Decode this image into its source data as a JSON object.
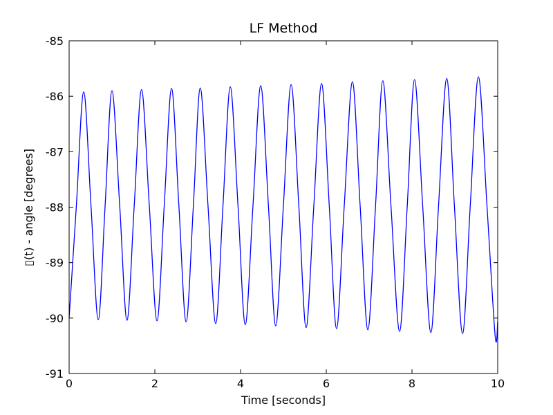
{
  "chart_data": {
    "type": "line",
    "title": "LF Method",
    "xlabel": "Time [seconds]",
    "ylabel": "▯(t) - angle [degrees]",
    "xlim": [
      0,
      10
    ],
    "xticks": [
      0,
      2,
      4,
      6,
      8,
      10
    ],
    "ylim": [
      -91,
      -85
    ],
    "yticks": [
      -91,
      -90,
      -89,
      -88,
      -87,
      -86,
      -85
    ],
    "grid": false,
    "series": [
      {
        "name": "LF Method",
        "color": "#0000ff",
        "x": [
          0,
          0.17,
          0.34,
          0.51,
          0.68,
          0.84,
          1.0,
          1.18,
          1.35,
          1.52,
          1.69,
          1.87,
          2.05,
          2.22,
          2.39,
          2.56,
          2.73,
          2.9,
          3.06,
          3.24,
          3.42,
          3.59,
          3.76,
          3.94,
          4.11,
          4.29,
          4.47,
          4.65,
          4.82,
          5.0,
          5.18,
          5.36,
          5.53,
          5.71,
          5.89,
          6.07,
          6.24,
          6.42,
          6.61,
          6.79,
          6.97,
          7.15,
          7.32,
          7.51,
          7.71,
          7.89,
          8.06,
          8.25,
          8.44,
          8.62,
          8.81,
          8.99,
          9.18,
          9.36,
          9.55,
          9.75,
          9.94,
          10.0
        ],
        "values": [
          -90.0,
          -87.96,
          -85.92,
          -87.97,
          -90.03,
          -87.97,
          -85.9,
          -87.97,
          -90.04,
          -87.96,
          -85.88,
          -87.96,
          -90.05,
          -87.96,
          -85.86,
          -87.96,
          -90.07,
          -87.96,
          -85.85,
          -87.97,
          -90.1,
          -87.97,
          -85.83,
          -87.97,
          -90.12,
          -87.97,
          -85.81,
          -87.97,
          -90.14,
          -87.97,
          -85.79,
          -87.98,
          -90.17,
          -87.97,
          -85.77,
          -87.98,
          -90.19,
          -87.97,
          -85.74,
          -87.97,
          -90.21,
          -87.97,
          -85.72,
          -87.98,
          -90.24,
          -87.97,
          -85.7,
          -87.98,
          -90.26,
          -87.97,
          -85.68,
          -87.98,
          -90.28,
          -87.97,
          -85.65,
          -87.98,
          -90.32,
          -90.07
        ]
      }
    ]
  }
}
